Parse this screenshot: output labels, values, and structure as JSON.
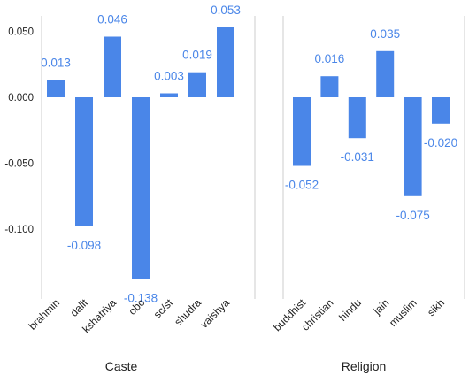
{
  "chart_data": [
    {
      "type": "bar",
      "xlabel": "Caste",
      "categories": [
        "brahmin",
        "dalit",
        "kshatriya",
        "obc",
        "sc/st",
        "shudra",
        "vaishya"
      ],
      "values": [
        0.013,
        -0.098,
        0.046,
        -0.138,
        0.003,
        0.019,
        0.053
      ],
      "value_labels": [
        "0.013",
        "-0.098",
        "0.046",
        "-0.138",
        "0.003",
        "0.019",
        "0.053"
      ],
      "yticks": [
        "0.050",
        "0.000",
        "-0.050",
        "-0.100"
      ],
      "ytick_values": [
        0.05,
        0.0,
        -0.05,
        -0.1
      ],
      "ylim": [
        -0.146,
        0.06
      ],
      "grid": false
    },
    {
      "type": "bar",
      "xlabel": "Religion",
      "categories": [
        "buddhist",
        "christian",
        "hindu",
        "jain",
        "muslim",
        "sikh"
      ],
      "values": [
        -0.052,
        0.016,
        -0.031,
        0.035,
        -0.075,
        -0.02
      ],
      "value_labels": [
        "-0.052",
        "0.016",
        "-0.031",
        "0.035",
        "-0.075",
        "-0.020"
      ],
      "ylim": [
        -0.146,
        0.06
      ],
      "grid": false
    }
  ],
  "colors": {
    "bar": "#4a86e8",
    "label": "#4a86e8",
    "axis": "#cccccc"
  }
}
